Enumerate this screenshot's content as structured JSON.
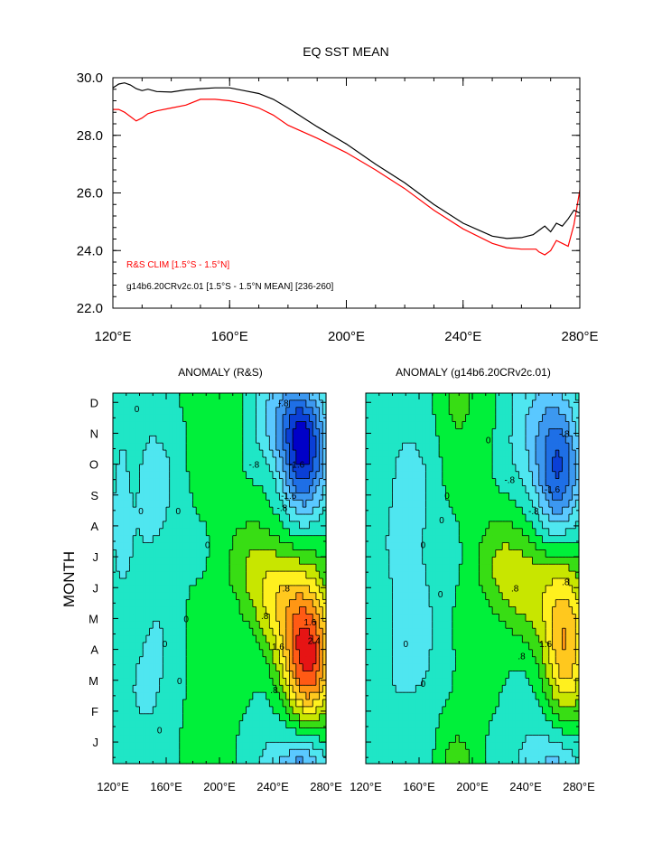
{
  "chart_data": [
    {
      "type": "line",
      "title": "EQ SST MEAN",
      "xlabel": "",
      "ylabel": "",
      "xlim": [
        120,
        280
      ],
      "ylim": [
        22,
        30
      ],
      "xticks": [
        120,
        160,
        200,
        240,
        280
      ],
      "xtick_labels": [
        "120°E",
        "160°E",
        "200°E",
        "240°E",
        "280°E"
      ],
      "yticks": [
        22,
        24,
        26,
        28,
        30
      ],
      "ytick_labels": [
        "22.0",
        "24.0",
        "26.0",
        "28.0",
        "30.0"
      ],
      "grid": false,
      "legend_position": "bottom-left",
      "series": [
        {
          "name": "R&S CLIM [1.5°S - 1.5°N]",
          "color": "#ff0000",
          "x": [
            120,
            122,
            124,
            126,
            128,
            130,
            132,
            135,
            140,
            145,
            150,
            155,
            160,
            165,
            170,
            175,
            180,
            190,
            200,
            210,
            220,
            230,
            240,
            250,
            255,
            260,
            265,
            266,
            268,
            270,
            272,
            274,
            276,
            278,
            280
          ],
          "y": [
            28.9,
            28.9,
            28.8,
            28.65,
            28.5,
            28.6,
            28.75,
            28.85,
            28.95,
            29.05,
            29.25,
            29.25,
            29.2,
            29.1,
            28.95,
            28.7,
            28.35,
            27.9,
            27.4,
            26.8,
            26.15,
            25.4,
            24.75,
            24.25,
            24.1,
            24.05,
            24.05,
            23.95,
            23.85,
            24.0,
            24.35,
            24.25,
            24.15,
            24.9,
            26.1
          ]
        },
        {
          "name": "g14b6.20CRv2c.01 [1.5°S - 1.5°N MEAN] [236-260]",
          "color": "#000000",
          "x": [
            120,
            122,
            124,
            126,
            128,
            130,
            132,
            135,
            140,
            145,
            150,
            155,
            160,
            165,
            170,
            175,
            180,
            190,
            200,
            210,
            220,
            230,
            240,
            250,
            255,
            260,
            264,
            266,
            268,
            270,
            272,
            274,
            276,
            278,
            280
          ],
          "y": [
            29.65,
            29.78,
            29.82,
            29.75,
            29.62,
            29.55,
            29.6,
            29.52,
            29.5,
            29.58,
            29.62,
            29.65,
            29.65,
            29.55,
            29.45,
            29.25,
            28.95,
            28.3,
            27.7,
            27.0,
            26.35,
            25.6,
            24.95,
            24.5,
            24.42,
            24.45,
            24.55,
            24.7,
            24.85,
            24.65,
            24.95,
            24.85,
            25.1,
            25.4,
            25.3
          ]
        }
      ]
    },
    {
      "type": "heatmap",
      "title": "ANOMALY (R&S)",
      "xlabel": "",
      "ylabel": "MONTH",
      "xlim": [
        120,
        280
      ],
      "xticks": [
        120,
        160,
        200,
        240,
        280
      ],
      "xtick_labels": [
        "120°E",
        "160°E",
        "200°E",
        "240°E",
        "280°E"
      ],
      "month_labels": [
        "J",
        "F",
        "M",
        "A",
        "M",
        "J",
        "J",
        "A",
        "S",
        "O",
        "N",
        "D"
      ],
      "contour_levels": [
        -2.4,
        -2.0,
        -1.6,
        -1.2,
        -0.8,
        -0.4,
        0,
        0.4,
        0.8,
        1.2,
        1.6,
        2.0,
        2.4,
        2.8
      ],
      "features": [
        {
          "lon": 263,
          "month": 10.4,
          "amp": -2.3,
          "sx": 12,
          "sy": 1.5
        },
        {
          "lon": 245,
          "month": 11.2,
          "amp": -0.7,
          "sx": 18,
          "sy": 1.0
        },
        {
          "lon": 266,
          "month": 3.8,
          "amp": 3.0,
          "sx": 14,
          "sy": 1.6
        },
        {
          "lon": 244,
          "month": 5.8,
          "amp": 1.0,
          "sx": 18,
          "sy": 1.2
        },
        {
          "lon": 226,
          "month": 6.8,
          "amp": 0.5,
          "sx": 16,
          "sy": 1.2
        },
        {
          "lon": 150,
          "month": 9.0,
          "amp": -0.55,
          "sx": 14,
          "sy": 2.2
        },
        {
          "lon": 150,
          "month": 3.0,
          "amp": -0.5,
          "sx": 16,
          "sy": 1.6
        },
        {
          "lon": 126,
          "month": 8.5,
          "amp": -0.6,
          "sx": 5,
          "sy": 1.8
        },
        {
          "lon": 205,
          "month": 11.0,
          "amp": 0.3,
          "sx": 14,
          "sy": 1.5
        },
        {
          "lon": 185,
          "month": 2.0,
          "amp": 0.25,
          "sx": 14,
          "sy": 2.0
        },
        {
          "lon": 255,
          "month": 1.0,
          "amp": -0.4,
          "sx": 25,
          "sy": 1.2
        }
      ],
      "labels": [
        {
          "text": "-.8",
          "lon": 248,
          "month": 12.0
        },
        {
          "text": "-.8",
          "lon": 226,
          "month": 10.0
        },
        {
          "text": "-.8",
          "lon": 247,
          "month": 8.6
        },
        {
          "text": "-1.6",
          "lon": 258,
          "month": 10.0
        },
        {
          "text": "-1.6",
          "lon": 252,
          "month": 9.0
        },
        {
          "text": "0",
          "lon": 138,
          "month": 11.8
        },
        {
          "text": "0",
          "lon": 169,
          "month": 8.5
        },
        {
          "text": "0",
          "lon": 141,
          "month": 8.5
        },
        {
          "text": "0",
          "lon": 191,
          "month": 7.4
        },
        {
          "text": "0",
          "lon": 175,
          "month": 5.0
        },
        {
          "text": "0",
          "lon": 159,
          "month": 4.2
        },
        {
          "text": "0",
          "lon": 170,
          "month": 3.0
        },
        {
          "text": "0",
          "lon": 155,
          "month": 1.4
        },
        {
          "text": ".8",
          "lon": 250,
          "month": 6.0
        },
        {
          "text": ".8",
          "lon": 234,
          "month": 5.1
        },
        {
          "text": ".8",
          "lon": 241,
          "month": 2.7
        },
        {
          "text": "1.6",
          "lon": 244,
          "month": 4.1
        },
        {
          "text": "1.6",
          "lon": 268,
          "month": 4.9
        },
        {
          "text": "2.4",
          "lon": 271,
          "month": 4.3
        }
      ]
    },
    {
      "type": "heatmap",
      "title": "ANOMALY (g14b6.20CRv2c.01)",
      "xlabel": "",
      "ylabel": "",
      "xlim": [
        120,
        280
      ],
      "xticks": [
        120,
        160,
        200,
        240,
        280
      ],
      "xtick_labels": [
        "120°E",
        "160°E",
        "200°E",
        "240°E",
        "280°E"
      ],
      "month_labels": [
        "J",
        "F",
        "M",
        "A",
        "M",
        "J",
        "J",
        "A",
        "S",
        "O",
        "N",
        "D"
      ],
      "contour_levels": [
        -2.4,
        -2.0,
        -1.6,
        -1.2,
        -0.8,
        -0.4,
        0,
        0.4,
        0.8,
        1.2,
        1.6,
        2.0,
        2.4,
        2.8
      ],
      "features": [
        {
          "lon": 265,
          "month": 9.8,
          "amp": -1.8,
          "sx": 12,
          "sy": 1.8
        },
        {
          "lon": 243,
          "month": 10.5,
          "amp": -0.6,
          "sx": 16,
          "sy": 1.3
        },
        {
          "lon": 270,
          "month": 4.2,
          "amp": 2.0,
          "sx": 12,
          "sy": 1.8
        },
        {
          "lon": 243,
          "month": 6.2,
          "amp": 0.9,
          "sx": 20,
          "sy": 1.2
        },
        {
          "lon": 222,
          "month": 6.8,
          "amp": 0.45,
          "sx": 15,
          "sy": 1.3
        },
        {
          "lon": 152,
          "month": 8.5,
          "amp": -0.55,
          "sx": 16,
          "sy": 2.5
        },
        {
          "lon": 155,
          "month": 3.5,
          "amp": -0.5,
          "sx": 18,
          "sy": 2.0
        },
        {
          "lon": 186,
          "month": 12.0,
          "amp": 0.35,
          "sx": 9,
          "sy": 0.8
        },
        {
          "lon": 200,
          "month": 10.5,
          "amp": 0.25,
          "sx": 16,
          "sy": 1.5
        },
        {
          "lon": 188,
          "month": 1.5,
          "amp": 0.3,
          "sx": 14,
          "sy": 1.5
        },
        {
          "lon": 250,
          "month": 1.0,
          "amp": -0.35,
          "sx": 25,
          "sy": 1.2
        }
      ],
      "labels": [
        {
          "text": "-.8",
          "lon": 269,
          "month": 11.0
        },
        {
          "text": "-.8",
          "lon": 228,
          "month": 9.5
        },
        {
          "text": "-.8",
          "lon": 246,
          "month": 8.5
        },
        {
          "text": "-1.6",
          "lon": 260,
          "month": 9.2
        },
        {
          "text": "0",
          "lon": 212,
          "month": 10.8
        },
        {
          "text": "0",
          "lon": 181,
          "month": 9.0
        },
        {
          "text": "0",
          "lon": 177,
          "month": 8.2
        },
        {
          "text": "0",
          "lon": 163,
          "month": 7.4
        },
        {
          "text": "0",
          "lon": 176,
          "month": 5.8
        },
        {
          "text": "0",
          "lon": 163,
          "month": 2.9
        },
        {
          "text": "0",
          "lon": 150,
          "month": 4.2
        },
        {
          "text": ".8",
          "lon": 232,
          "month": 6.0
        },
        {
          "text": ".8",
          "lon": 237,
          "month": 3.8
        },
        {
          "text": ".8",
          "lon": 270,
          "month": 6.2
        },
        {
          "text": "1.6",
          "lon": 255,
          "month": 4.2
        }
      ]
    }
  ],
  "colors": {
    "levels": [
      "#0000c8",
      "#0a3fd6",
      "#1e6fe6",
      "#3c98f0",
      "#5ac8ff",
      "#4fe6f0",
      "#1fe6c6",
      "#00f03a",
      "#38dd14",
      "#c8e600",
      "#fff01e",
      "#ffc81e",
      "#ff9614",
      "#ff5a14",
      "#e61414"
    ]
  }
}
